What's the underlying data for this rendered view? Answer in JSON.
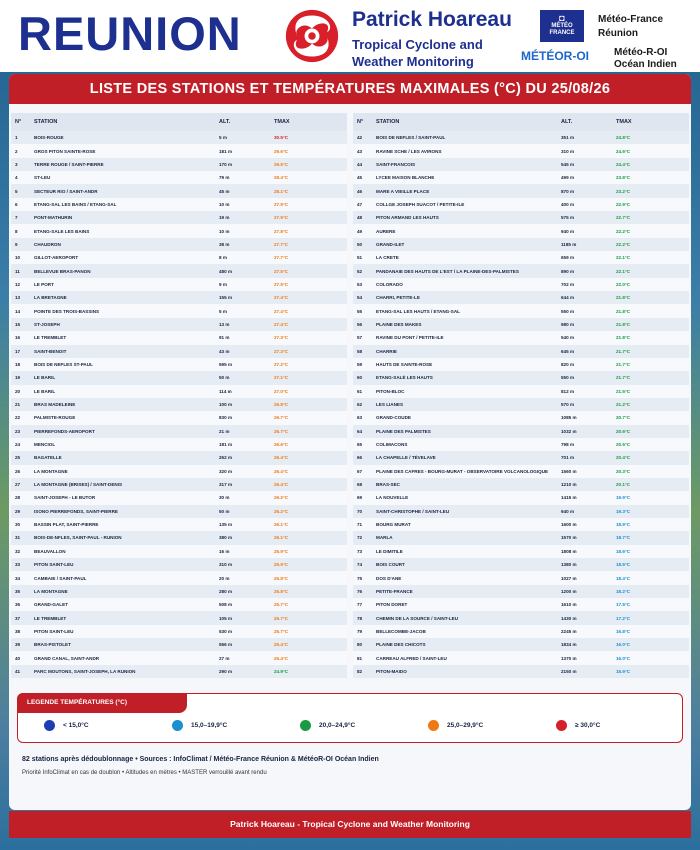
{
  "header": {
    "region": "REUNION",
    "brand_title": "Patrick Hoareau",
    "brand_sub1": "Tropical Cyclone and",
    "brand_sub2": "Weather Monitoring",
    "mf_logo_line1": "MÉTÉO",
    "mf_logo_line2": "FRANCE",
    "mf_name1": "Météo-France",
    "mf_name2": "Réunion",
    "mo_logo": "MÉTÉOR-OI",
    "mo_name1": "Météo-R-OI",
    "mo_name2": "Océan Indien"
  },
  "banner": "LISTE DES STATIONS ET TEMPÉRATURES MAXIMALES (°C) DU 25/08/26",
  "columns": {
    "num": "N°",
    "station": "STATION",
    "alt": "ALT.",
    "tmax": "TMAX"
  },
  "colors": {
    "lt15": "#1f3fb0",
    "c15": "#1b8fcf",
    "c20": "#1a9a45",
    "c25": "#ef7a14",
    "c30": "#d61f2d"
  },
  "stations_left": [
    {
      "n": "1",
      "s": "BOIS-ROUGE",
      "a": "5 m",
      "t": "30.5°C",
      "c": "c30"
    },
    {
      "n": "2",
      "s": "GROS PITON SAINTE-ROSE",
      "a": "181 m",
      "t": "29.6°C",
      "c": "c25"
    },
    {
      "n": "3",
      "s": "TERRE ROUGE / SAINT-PIERRE",
      "a": "170 m",
      "t": "29.5°C",
      "c": "c25"
    },
    {
      "n": "4",
      "s": "ST-LEU",
      "a": "79 m",
      "t": "28.4°C",
      "c": "c25"
    },
    {
      "n": "5",
      "s": "SECTEUR RIO / SAINT-ANDR",
      "a": "45 m",
      "t": "28.1°C",
      "c": "c25"
    },
    {
      "n": "6",
      "s": "ETANG-SAL LES BAINS / ETANG-SAL",
      "a": "10 m",
      "t": "27.9°C",
      "c": "c25"
    },
    {
      "n": "7",
      "s": "PONT-MATHURIN",
      "a": "19 m",
      "t": "27.9°C",
      "c": "c25"
    },
    {
      "n": "8",
      "s": "ETANG-SALE LES BAINS",
      "a": "10 m",
      "t": "27.8°C",
      "c": "c25"
    },
    {
      "n": "9",
      "s": "CHAUDRON",
      "a": "38 m",
      "t": "27.7°C",
      "c": "c25"
    },
    {
      "n": "10",
      "s": "GILLOT-AEROPORT",
      "a": "8 m",
      "t": "27.7°C",
      "c": "c25"
    },
    {
      "n": "11",
      "s": "BELLEVUE BRAS-PANON",
      "a": "480 m",
      "t": "27.5°C",
      "c": "c25"
    },
    {
      "n": "12",
      "s": "LE PORT",
      "a": "9 m",
      "t": "27.5°C",
      "c": "c25"
    },
    {
      "n": "13",
      "s": "LA BRETAGNE",
      "a": "155 m",
      "t": "27.4°C",
      "c": "c25"
    },
    {
      "n": "14",
      "s": "POINTE DES TROIS-BASSINS",
      "a": "5 m",
      "t": "27.4°C",
      "c": "c25"
    },
    {
      "n": "15",
      "s": "ST-JOSEPH",
      "a": "13 m",
      "t": "27.4°C",
      "c": "c25"
    },
    {
      "n": "16",
      "s": "LE TREMBLET",
      "a": "91 m",
      "t": "27.3°C",
      "c": "c25"
    },
    {
      "n": "17",
      "s": "SAINT-BENOIT",
      "a": "43 m",
      "t": "27.3°C",
      "c": "c25"
    },
    {
      "n": "18",
      "s": "BOIS DE NEFLES ST-PAUL",
      "a": "595 m",
      "t": "27.2°C",
      "c": "c25"
    },
    {
      "n": "19",
      "s": "LE BARIL",
      "a": "50 m",
      "t": "27.1°C",
      "c": "c25"
    },
    {
      "n": "20",
      "s": "LE BARIL",
      "a": "114 m",
      "t": "27.0°C",
      "c": "c25"
    },
    {
      "n": "21",
      "s": "BRAS MADELEINE",
      "a": "100 m",
      "t": "26.8°C",
      "c": "c25"
    },
    {
      "n": "22",
      "s": "PALMISTE-ROUGE",
      "a": "830 m",
      "t": "26.7°C",
      "c": "c25"
    },
    {
      "n": "23",
      "s": "PIERREFONDS-AEROPORT",
      "a": "21 m",
      "t": "26.7°C",
      "c": "c25"
    },
    {
      "n": "24",
      "s": "MENCIOL",
      "a": "181 m",
      "t": "26.6°C",
      "c": "c25"
    },
    {
      "n": "25",
      "s": "BAGATELLE",
      "a": "262 m",
      "t": "26.4°C",
      "c": "c25"
    },
    {
      "n": "26",
      "s": "LA MONTAGNE",
      "a": "320 m",
      "t": "26.4°C",
      "c": "c25"
    },
    {
      "n": "27",
      "s": "LA MONTAGNE (BRISES) / SAINT-DENIS",
      "a": "317 m",
      "t": "26.4°C",
      "c": "c25"
    },
    {
      "n": "28",
      "s": "SAINT-JOSEPH - LE BUTOR",
      "a": "30 m",
      "t": "26.2°C",
      "c": "c25"
    },
    {
      "n": "29",
      "s": "ISONO PIERREFONDS, SAINT-PIERRE",
      "a": "50 m",
      "t": "26.2°C",
      "c": "c25"
    },
    {
      "n": "30",
      "s": "BASSIN PLAT, SAINT-PIERRE",
      "a": "135 m",
      "t": "26.1°C",
      "c": "c25"
    },
    {
      "n": "31",
      "s": "BOIS-DE-NFLES, SAINT-PAUL - RUNION",
      "a": "380 m",
      "t": "26.1°C",
      "c": "c25"
    },
    {
      "n": "32",
      "s": "BEAUVALLON",
      "a": "16 m",
      "t": "25.9°C",
      "c": "c25"
    },
    {
      "n": "33",
      "s": "PITON SAINT-LEU",
      "a": "310 m",
      "t": "25.9°C",
      "c": "c25"
    },
    {
      "n": "34",
      "s": "CAMBAIE / SAINT-PAUL",
      "a": "20 m",
      "t": "25.8°C",
      "c": "c25"
    },
    {
      "n": "35",
      "s": "LA MONTAGNE",
      "a": "280 m",
      "t": "25.8°C",
      "c": "c25"
    },
    {
      "n": "36",
      "s": "GRAND-GALET",
      "a": "508 m",
      "t": "25.7°C",
      "c": "c25"
    },
    {
      "n": "37",
      "s": "LE TREMBLET",
      "a": "105 m",
      "t": "25.7°C",
      "c": "c25"
    },
    {
      "n": "38",
      "s": "PITON SAINT-LEU",
      "a": "530 m",
      "t": "25.7°C",
      "c": "c25"
    },
    {
      "n": "39",
      "s": "BRAS-PISTOLET",
      "a": "556 m",
      "t": "25.4°C",
      "c": "c25"
    },
    {
      "n": "40",
      "s": "GRAND CANAL, SAINT-ANDR",
      "a": "27 m",
      "t": "25.4°C",
      "c": "c25"
    },
    {
      "n": "41",
      "s": "PARC MOUTONS, SAINT-JOSEPH, LA RUNION",
      "a": "290 m",
      "t": "24.9°C",
      "c": "c20"
    }
  ],
  "stations_right": [
    {
      "n": "42",
      "s": "BOIS DE NEFLES / SAINT-PAUL",
      "a": "351 m",
      "t": "24.8°C",
      "c": "c20"
    },
    {
      "n": "43",
      "s": "RAVINE SCHE / LES AVIRONS",
      "a": "310 m",
      "t": "24.6°C",
      "c": "c20"
    },
    {
      "n": "44",
      "s": "SAINT-FRANCOIS",
      "a": "545 m",
      "t": "24.4°C",
      "c": "c20"
    },
    {
      "n": "45",
      "s": "LYCEE MAISON BLANCHE",
      "a": "499 m",
      "t": "23.8°C",
      "c": "c20"
    },
    {
      "n": "46",
      "s": "MARE A VIEILLE PLACE",
      "a": "870 m",
      "t": "23.2°C",
      "c": "c20"
    },
    {
      "n": "47",
      "s": "COLLGE JOSEPH SUACOT / PETITE-ILE",
      "a": "400 m",
      "t": "22.9°C",
      "c": "c20"
    },
    {
      "n": "48",
      "s": "PITON ARMAND LES HAUTS",
      "a": "575 m",
      "t": "22.7°C",
      "c": "c20"
    },
    {
      "n": "49",
      "s": "AURERE",
      "a": "940 m",
      "t": "22.2°C",
      "c": "c20"
    },
    {
      "n": "50",
      "s": "GRAND-ILET",
      "a": "1185 m",
      "t": "22.2°C",
      "c": "c20"
    },
    {
      "n": "51",
      "s": "LA CRETE",
      "a": "659 m",
      "t": "22.1°C",
      "c": "c20"
    },
    {
      "n": "52",
      "s": "PANDANAIE DES HAUTS DE L'EST / LA PLAINE-DES-PALMISTES",
      "a": "890 m",
      "t": "22.1°C",
      "c": "c20"
    },
    {
      "n": "53",
      "s": "COLORADO",
      "a": "702 m",
      "t": "22.0°C",
      "c": "c20"
    },
    {
      "n": "54",
      "s": "CHARRI, PETITE-LE",
      "a": "644 m",
      "t": "21.8°C",
      "c": "c20"
    },
    {
      "n": "55",
      "s": "ETANG-SAL LES HAUTS / ETANG-SAL",
      "a": "550 m",
      "t": "21.8°C",
      "c": "c20"
    },
    {
      "n": "56",
      "s": "PLAINE DES MAKES",
      "a": "980 m",
      "t": "21.8°C",
      "c": "c20"
    },
    {
      "n": "57",
      "s": "RAVINE DU PONT / PETITE-ILE",
      "a": "540 m",
      "t": "21.8°C",
      "c": "c20"
    },
    {
      "n": "58",
      "s": "CHARRIE",
      "a": "645 m",
      "t": "21.7°C",
      "c": "c20"
    },
    {
      "n": "59",
      "s": "HAUTS DE SAINTE-ROSE",
      "a": "820 m",
      "t": "21.7°C",
      "c": "c20"
    },
    {
      "n": "60",
      "s": "ETANG-SALÉ LES HAUTS",
      "a": "550 m",
      "t": "21.7°C",
      "c": "c20"
    },
    {
      "n": "61",
      "s": "PITON-BLOC",
      "a": "812 m",
      "t": "21.5°C",
      "c": "c20"
    },
    {
      "n": "62",
      "s": "LES LIANES",
      "a": "570 m",
      "t": "21.2°C",
      "c": "c20"
    },
    {
      "n": "63",
      "s": "GRAND-COUDE",
      "a": "1085 m",
      "t": "20.7°C",
      "c": "c20"
    },
    {
      "n": "64",
      "s": "PLAINE DES PALMISTES",
      "a": "1032 m",
      "t": "20.6°C",
      "c": "c20"
    },
    {
      "n": "65",
      "s": "COLIMACONS",
      "a": "798 m",
      "t": "20.5°C",
      "c": "c20"
    },
    {
      "n": "66",
      "s": "LA CHAPELLE / TÉVELAVE",
      "a": "701 m",
      "t": "20.4°C",
      "c": "c20"
    },
    {
      "n": "67",
      "s": "PLAINE DES CAFRES - BOURG-MURAT - OBSERVATOIRE VOLCANOLOGIQUE",
      "a": "1560 m",
      "t": "20.3°C",
      "c": "c20"
    },
    {
      "n": "68",
      "s": "BRAS-SEC",
      "a": "1210 m",
      "t": "20.1°C",
      "c": "c20"
    },
    {
      "n": "69",
      "s": "LA NOUVELLE",
      "a": "1415 m",
      "t": "19.9°C",
      "c": "c15"
    },
    {
      "n": "70",
      "s": "SAINT-CHRISTOPHE / SAINT-LEU",
      "a": "940 m",
      "t": "19.3°C",
      "c": "c15"
    },
    {
      "n": "71",
      "s": "BOURG MURAT",
      "a": "1600 m",
      "t": "18.9°C",
      "c": "c15"
    },
    {
      "n": "72",
      "s": "MARLA",
      "a": "1570 m",
      "t": "18.7°C",
      "c": "c15"
    },
    {
      "n": "73",
      "s": "LE DIMITILE",
      "a": "1808 m",
      "t": "18.6°C",
      "c": "c15"
    },
    {
      "n": "74",
      "s": "BOIS COURT",
      "a": "1380 m",
      "t": "18.5°C",
      "c": "c15"
    },
    {
      "n": "75",
      "s": "DOS D'ANE",
      "a": "1027 m",
      "t": "18.4°C",
      "c": "c15"
    },
    {
      "n": "76",
      "s": "PETITE-FRANCE",
      "a": "1200 m",
      "t": "18.2°C",
      "c": "c15"
    },
    {
      "n": "77",
      "s": "PITON DORET",
      "a": "1610 m",
      "t": "17.5°C",
      "c": "c15"
    },
    {
      "n": "78",
      "s": "CHEMIN DE LA SOURCE / SAINT-LEU",
      "a": "1430 m",
      "t": "17.2°C",
      "c": "c15"
    },
    {
      "n": "79",
      "s": "BELLECOMBE-JACOB",
      "a": "2245 m",
      "t": "16.8°C",
      "c": "c15"
    },
    {
      "n": "80",
      "s": "PLAINE DES CHICOTS",
      "a": "1834 m",
      "t": "16.0°C",
      "c": "c15"
    },
    {
      "n": "81",
      "s": "CARREAU ALFRED / SAINT-LEU",
      "a": "1370 m",
      "t": "16.0°C",
      "c": "c15"
    },
    {
      "n": "82",
      "s": "PITON-MAIDO",
      "a": "2150 m",
      "t": "15.9°C",
      "c": "c15"
    }
  ],
  "legend": {
    "title": "LEGENDE TEMPÉRATURES (°C)",
    "items": [
      {
        "label": "< 15,0°C",
        "c": "lt15"
      },
      {
        "label": "15,0–19,9°C",
        "c": "c15"
      },
      {
        "label": "20,0–24,9°C",
        "c": "c20"
      },
      {
        "label": "25,0–29,9°C",
        "c": "c25"
      },
      {
        "label": "≥ 30,0°C",
        "c": "c30"
      }
    ]
  },
  "notes": {
    "line1": "82 stations après dédoublonnage • Sources : InfoClimat / Météo-France Réunion & MétéoR-OI Océan Indien",
    "line2": "Priorité InfoClimat en cas de doublon • Altitudes en mètres • MASTER verrouillé avant rendu"
  },
  "footer": "Patrick Hoareau - Tropical Cyclone and Weather Monitoring"
}
